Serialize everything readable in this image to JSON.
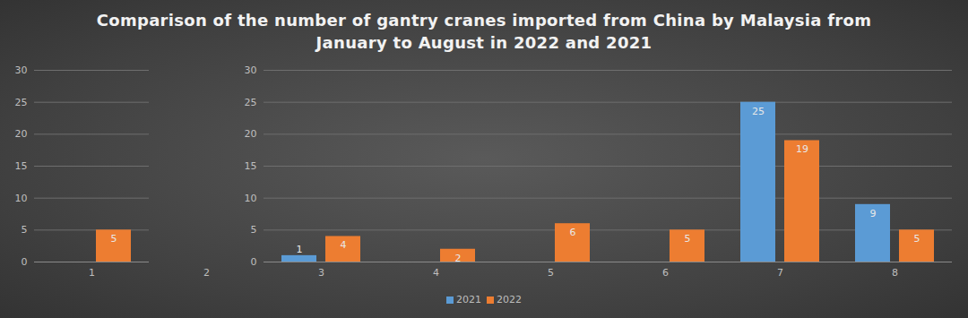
{
  "chart_data": {
    "type": "bar",
    "title": "Comparison of the number of gantry cranes imported from China by Malaysia from January to August in 2022 and 2021",
    "categories": [
      "1",
      "2",
      "3",
      "4",
      "5",
      "6",
      "7",
      "8"
    ],
    "series": [
      {
        "name": "2021",
        "color": "#5b9bd5",
        "values": [
          null,
          null,
          1,
          null,
          null,
          null,
          25,
          9
        ]
      },
      {
        "name": "2022",
        "color": "#ed7d31",
        "values": [
          5,
          null,
          4,
          2,
          6,
          5,
          19,
          5
        ]
      }
    ],
    "ylim": [
      0,
      30
    ],
    "yticks": [
      0,
      5,
      10,
      15,
      20,
      25,
      30
    ],
    "grid": true,
    "data_labels": true,
    "legend": "bottom"
  }
}
